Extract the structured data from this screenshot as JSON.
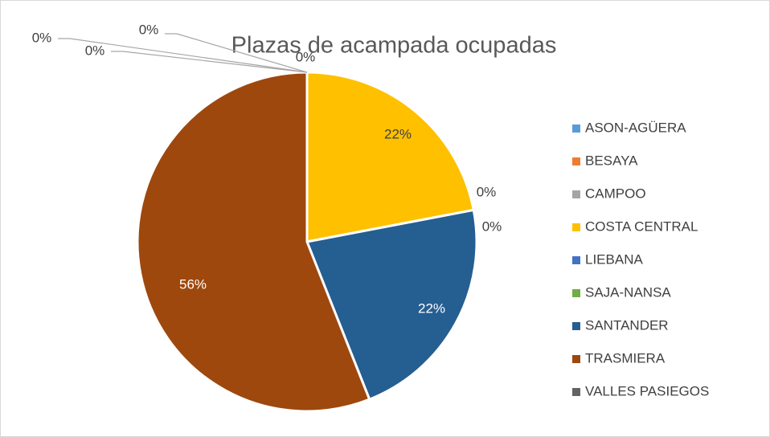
{
  "chart_data": {
    "type": "pie",
    "title": "Plazas de acampada ocupadas",
    "categories": [
      "ASON-AGÜERA",
      "BESAYA",
      "CAMPOO",
      "COSTA CENTRAL",
      "LIEBANA",
      "SAJA-NANSA",
      "SANTANDER",
      "TRASMIERA",
      "VALLES PASIEGOS"
    ],
    "values": [
      0,
      0,
      0,
      22,
      0,
      0,
      22,
      56,
      0
    ],
    "value_labels": [
      "0%",
      "0%",
      "0%",
      "22%",
      "0%",
      "0%",
      "22%",
      "56%",
      "0%"
    ],
    "colors": [
      "#5b9bd5",
      "#ed7d31",
      "#a5a5a5",
      "#ffc000",
      "#4472c4",
      "#70ad47",
      "#255e91",
      "#9e480e",
      "#636363"
    ],
    "legend": "right"
  }
}
